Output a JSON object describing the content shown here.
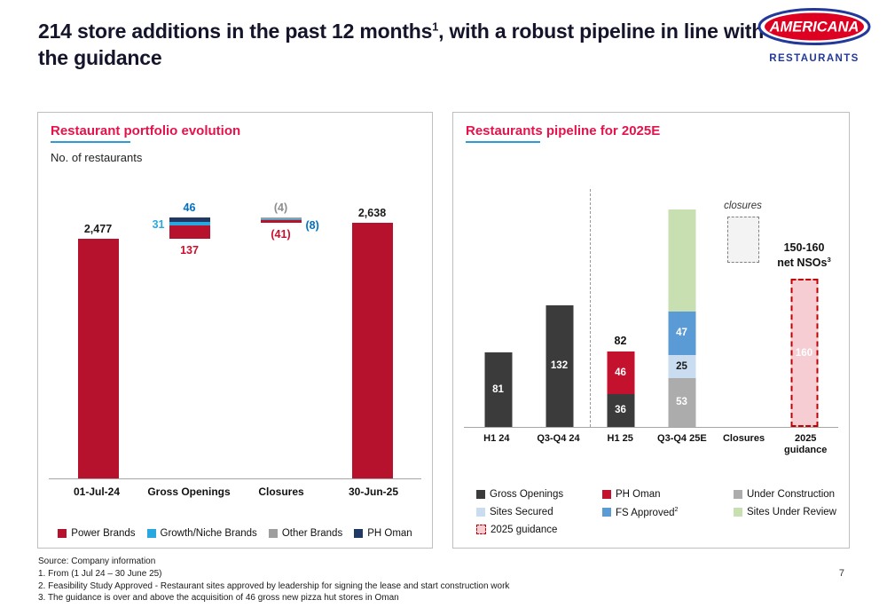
{
  "page": {
    "title_main": "214 store additions in the past 12 months",
    "title_sup": "1",
    "title_rest": ", with a robust pipeline in line with the guidance",
    "page_number": "7"
  },
  "logo": {
    "brand": "AMERICANA",
    "sub": "RESTAURANTS"
  },
  "footnotes": [
    "Source: Company information",
    "1. From (1 Jul 24 – 30 June 25)",
    "2. Feasibility Study Approved - Restaurant sites approved by leadership for signing the lease and start construction work",
    "3. The guidance is over and above the acquisition of 46 gross new pizza hut stores in Oman"
  ],
  "colors": {
    "accent_title": "#E4134B",
    "underline": "#2E9BD6",
    "heading_text": "#14142B",
    "guidance_border": "#C00000",
    "logo_red": "#DD0021",
    "logo_blue": "#22399A",
    "series": {
      "Power Brands": "#B6122E",
      "Growth/Niche Brands": "#29A8E0",
      "Other Brands": "#9E9E9E",
      "PH Oman Navy": "#1F3864",
      "Gross Openings": "#3B3B3B",
      "PH Oman": "#C3112E",
      "Under Construction": "#ACACAC",
      "Sites Secured": "#C9DCF0",
      "FS Approved": "#5B9BD5",
      "Sites Under Review": "#C8DFB2",
      "2025 guidance": "#F5CDD3"
    },
    "labels": {
      "black": "#1A1A1A",
      "red": "#C8102E",
      "blue": "#0070C0",
      "lightblue": "#29A8E0",
      "gray": "#8C8C8C"
    }
  },
  "chart_data": [
    {
      "type": "bar",
      "variant": "waterfall-stacked",
      "title": "Restaurant portfolio evolution",
      "ylabel": "No. of restaurants",
      "ylim": [
        0,
        2750
      ],
      "grid": false,
      "categories": [
        "01-Jul-24",
        "Gross Openings",
        "Closures",
        "30-Jun-25"
      ],
      "columns": [
        {
          "category": "01-Jul-24",
          "base": 0,
          "segments": [
            {
              "series": "Power Brands",
              "color": "Power Brands",
              "value": 2477
            }
          ],
          "labels": [
            {
              "text": "2,477",
              "pos": "above",
              "color": "black"
            }
          ]
        },
        {
          "category": "Gross Openings",
          "base": 2477,
          "segments": [
            {
              "series": "Power Brands",
              "color": "Power Brands",
              "value": 137
            },
            {
              "series": "Growth/Niche Brands",
              "color": "Growth/Niche Brands",
              "value": 31
            },
            {
              "series": "PH Oman",
              "color": "PH Oman Navy",
              "value": 46
            }
          ],
          "labels": [
            {
              "text": "46",
              "pos": "above",
              "color": "blue"
            },
            {
              "text": "31",
              "pos": "left",
              "color": "lightblue"
            },
            {
              "text": "137",
              "pos": "below",
              "color": "red"
            }
          ]
        },
        {
          "category": "Closures",
          "base": 2638,
          "segments": [
            {
              "series": "Power Brands",
              "color": "Power Brands",
              "value": 41
            },
            {
              "series": "Growth/Niche Brands",
              "color": "Growth/Niche Brands",
              "value": 8
            },
            {
              "series": "Other Brands",
              "color": "Other Brands",
              "value": 4
            }
          ],
          "labels": [
            {
              "text": "(4)",
              "pos": "above",
              "color": "gray"
            },
            {
              "text": "(8)",
              "pos": "right",
              "color": "blue"
            },
            {
              "text": "(41)",
              "pos": "below",
              "color": "red"
            }
          ]
        },
        {
          "category": "30-Jun-25",
          "base": 0,
          "segments": [
            {
              "series": "Power Brands",
              "color": "Power Brands",
              "value": 2638
            }
          ],
          "labels": [
            {
              "text": "2,638",
              "pos": "above",
              "color": "black"
            }
          ]
        }
      ],
      "legend": [
        {
          "label": "Power Brands",
          "color": "Power Brands"
        },
        {
          "label": "Growth/Niche Brands",
          "color": "Growth/Niche Brands"
        },
        {
          "label": "Other Brands",
          "color": "Other Brands"
        },
        {
          "label": "PH Oman",
          "color": "PH Oman Navy"
        }
      ]
    },
    {
      "type": "bar",
      "variant": "stacked",
      "title": "Restaurants pipeline for 2025E",
      "ylim": [
        0,
        240
      ],
      "grid": false,
      "divider_after_index": 1,
      "categories": [
        "H1 24",
        "Q3-Q4 24",
        "H1 25",
        "Q3-Q4 25E",
        "Closures",
        "2025 guidance"
      ],
      "columns": [
        {
          "category": "H1 24",
          "segments": [
            {
              "series": "Gross Openings",
              "color": "Gross Openings",
              "value": 81,
              "label": "81"
            }
          ]
        },
        {
          "category": "Q3-Q4 24",
          "segments": [
            {
              "series": "Gross Openings",
              "color": "Gross Openings",
              "value": 132,
              "label": "132"
            }
          ]
        },
        {
          "category": "H1 25",
          "total_label": "82",
          "segments": [
            {
              "series": "Gross Openings",
              "color": "Gross Openings",
              "value": 36,
              "label": "36"
            },
            {
              "series": "PH Oman",
              "color": "PH Oman",
              "value": 46,
              "label": "46"
            }
          ]
        },
        {
          "category": "Q3-Q4 25E",
          "segments": [
            {
              "series": "Under Construction",
              "color": "Under Construction",
              "value": 53,
              "label": "53"
            },
            {
              "series": "Sites Secured",
              "color": "Sites Secured",
              "value": 25,
              "label": "25",
              "label_dark": true
            },
            {
              "series": "FS Approved",
              "color": "FS Approved",
              "value": 47,
              "label": "47"
            },
            {
              "series": "Sites Under Review",
              "color": "Sites Under Review",
              "value": 110,
              "label": ""
            }
          ]
        },
        {
          "category": "Closures",
          "dashed_box": {
            "offset": 185,
            "height": 52
          },
          "annotation": "closures"
        },
        {
          "category": "2025 guidance",
          "guidance": true,
          "segments": [
            {
              "series": "2025 guidance",
              "color": "2025 guidance",
              "value": 160,
              "label": "160"
            }
          ],
          "annotation_lines": [
            "150-160",
            "net NSOs"
          ],
          "annotation_sup": "3"
        }
      ],
      "legend": [
        {
          "label": "Gross Openings",
          "color": "Gross Openings"
        },
        {
          "label": "PH Oman",
          "color": "PH Oman"
        },
        {
          "label": "Under Construction",
          "color": "Under Construction"
        },
        {
          "label": "Sites Secured",
          "color": "Sites Secured"
        },
        {
          "label": "FS Approved",
          "sup": "2",
          "color": "FS Approved"
        },
        {
          "label": "Sites Under Review",
          "color": "Sites Under Review"
        },
        {
          "label": "2025 guidance",
          "color": "2025 guidance"
        }
      ]
    }
  ]
}
